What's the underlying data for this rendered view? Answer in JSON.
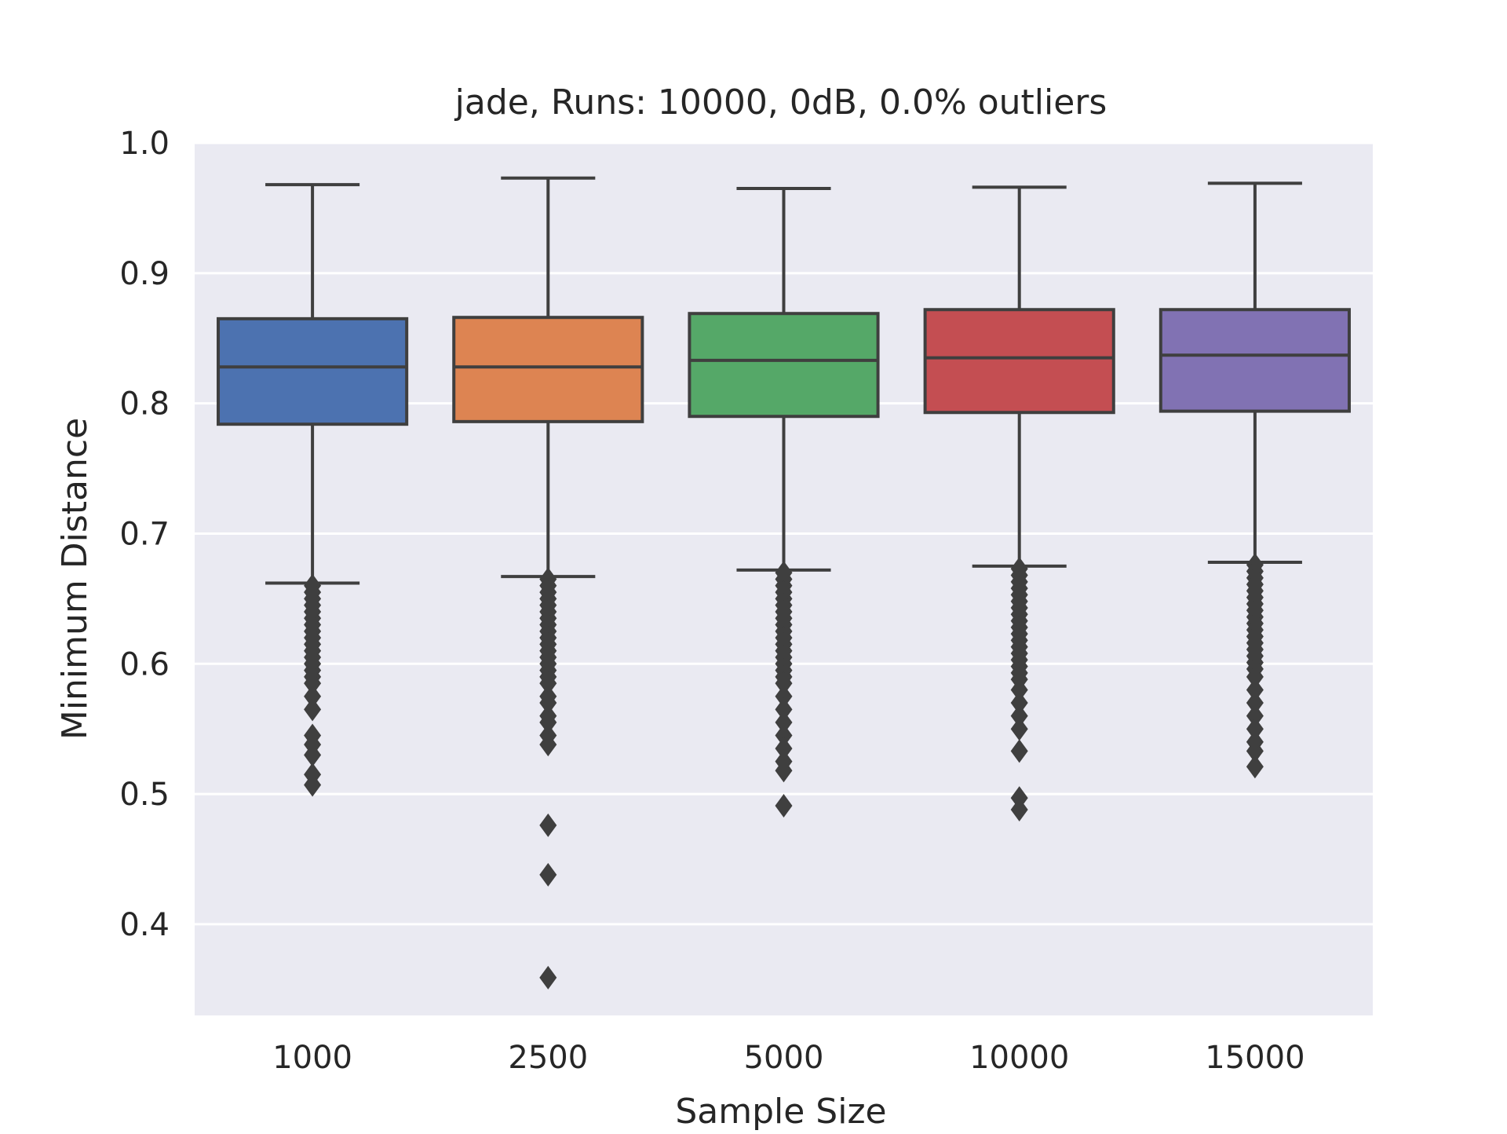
{
  "chart_data": {
    "type": "box",
    "title": "jade,  Runs: 10000, 0dB, 0.0% outliers",
    "xlabel": "Sample Size",
    "ylabel": "Minimum Distance",
    "ylim": [
      0.33,
      1.0
    ],
    "yticks": [
      "0.4",
      "0.5",
      "0.6",
      "0.7",
      "0.8",
      "0.9",
      "1.0"
    ],
    "grid": true,
    "background": "#EAEAF2",
    "line_color": "#3F3F3F",
    "categories": [
      "1000",
      "2500",
      "5000",
      "10000",
      "15000"
    ],
    "series": [
      {
        "color": "#4C72B0",
        "whisker_low": 0.662,
        "q1": 0.784,
        "median": 0.828,
        "q3": 0.865,
        "whisker_high": 0.968,
        "outliers": [
          0.66,
          0.655,
          0.65,
          0.645,
          0.64,
          0.635,
          0.63,
          0.625,
          0.62,
          0.615,
          0.61,
          0.605,
          0.6,
          0.595,
          0.59,
          0.585,
          0.575,
          0.565,
          0.545,
          0.538,
          0.53,
          0.515,
          0.507
        ]
      },
      {
        "color": "#DD8452",
        "whisker_low": 0.667,
        "q1": 0.786,
        "median": 0.828,
        "q3": 0.866,
        "whisker_high": 0.973,
        "outliers": [
          0.665,
          0.66,
          0.655,
          0.65,
          0.645,
          0.64,
          0.635,
          0.63,
          0.625,
          0.62,
          0.615,
          0.61,
          0.605,
          0.6,
          0.595,
          0.59,
          0.585,
          0.575,
          0.57,
          0.56,
          0.555,
          0.545,
          0.538,
          0.476,
          0.438,
          0.359
        ]
      },
      {
        "color": "#55A868",
        "whisker_low": 0.672,
        "q1": 0.79,
        "median": 0.833,
        "q3": 0.869,
        "whisker_high": 0.965,
        "outliers": [
          0.67,
          0.665,
          0.66,
          0.655,
          0.65,
          0.645,
          0.64,
          0.635,
          0.63,
          0.625,
          0.62,
          0.615,
          0.61,
          0.605,
          0.6,
          0.595,
          0.59,
          0.585,
          0.575,
          0.565,
          0.555,
          0.545,
          0.535,
          0.525,
          0.518,
          0.491
        ]
      },
      {
        "color": "#C44E52",
        "whisker_low": 0.675,
        "q1": 0.793,
        "median": 0.835,
        "q3": 0.872,
        "whisker_high": 0.966,
        "outliers": [
          0.673,
          0.668,
          0.663,
          0.658,
          0.653,
          0.648,
          0.643,
          0.638,
          0.633,
          0.628,
          0.623,
          0.618,
          0.613,
          0.608,
          0.603,
          0.598,
          0.593,
          0.588,
          0.58,
          0.57,
          0.56,
          0.55,
          0.533,
          0.497,
          0.488
        ]
      },
      {
        "color": "#8172B3",
        "whisker_low": 0.678,
        "q1": 0.794,
        "median": 0.837,
        "q3": 0.872,
        "whisker_high": 0.969,
        "outliers": [
          0.676,
          0.671,
          0.666,
          0.661,
          0.656,
          0.651,
          0.646,
          0.641,
          0.636,
          0.631,
          0.626,
          0.621,
          0.616,
          0.611,
          0.606,
          0.601,
          0.596,
          0.59,
          0.58,
          0.57,
          0.56,
          0.55,
          0.54,
          0.533,
          0.521
        ]
      }
    ]
  }
}
